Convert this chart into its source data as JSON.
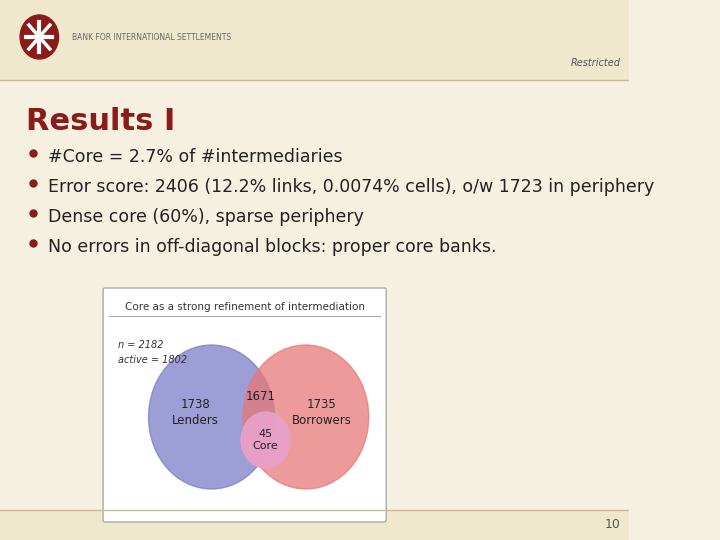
{
  "background_color": "#f5f0e0",
  "header_color": "#f0e8cc",
  "restricted_text": "Restricted",
  "restricted_color": "#555555",
  "restricted_fontsize": 7,
  "title": "Results I",
  "title_color": "#8b1a1a",
  "title_fontsize": 22,
  "bullet_color": "#8b1a1a",
  "bullet_text_color": "#222222",
  "bullet_fontsize": 12.5,
  "bullets": [
    "#Core = 2.7% of #intermediaries",
    "Error score: 2406 (12.2% links, 0.0074% cells), o/w 1723 in periphery",
    "Dense core (60%), sparse periphery",
    "No errors in off-diagonal blocks: proper core banks."
  ],
  "venn_title": "Core as a strong refinement of intermediation",
  "venn_n_text": "n = 2182",
  "venn_active_text": "active = 1802",
  "venn_lenders_color": "#7b7ec8",
  "venn_borrowers_color": "#e87878",
  "venn_core_color": "#e8a0c8",
  "venn_lenders_label": "1738\nLenders",
  "venn_borrowers_label": "1735\nBorrowers",
  "venn_overlap_label": "1671",
  "venn_core_label": "45\nCore",
  "page_number": "10",
  "page_number_color": "#555555",
  "page_number_fontsize": 9,
  "bis_text": "BANK FOR INTERNATIONAL SETTLEMENTS",
  "header_line_color": "#ccbb99",
  "footer_line_color": "#ccbb99"
}
